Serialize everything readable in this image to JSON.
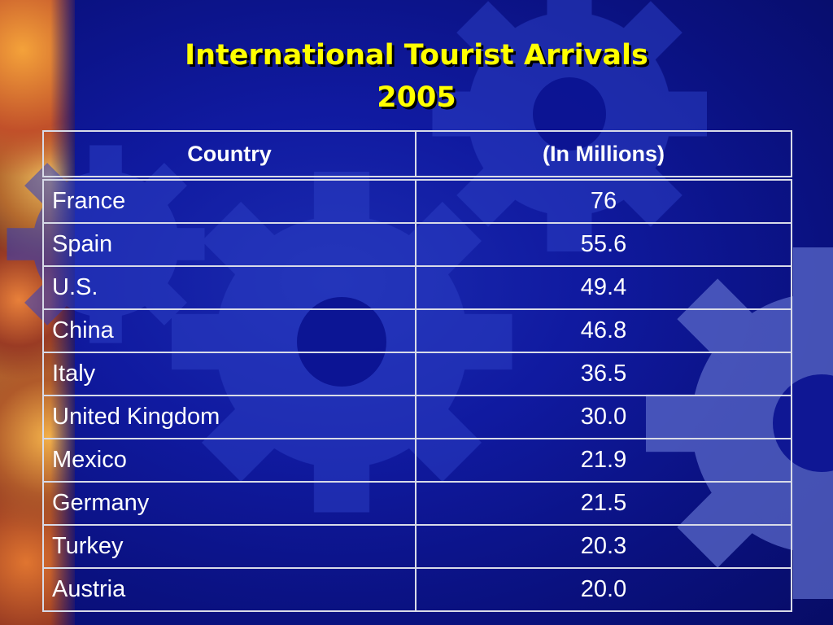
{
  "slide": {
    "title_line1": "International Tourist Arrivals",
    "title_line2": "2005"
  },
  "table": {
    "headers": [
      "Country",
      "(In Millions)"
    ],
    "rows": [
      {
        "country": "France",
        "value": "76"
      },
      {
        "country": "Spain",
        "value": "55.6"
      },
      {
        "country": "U.S.",
        "value": "49.4"
      },
      {
        "country": "China",
        "value": "46.8"
      },
      {
        "country": "Italy",
        "value": "36.5"
      },
      {
        "country": "United Kingdom",
        "value": "30.0"
      },
      {
        "country": "Mexico",
        "value": "21.9"
      },
      {
        "country": "Germany",
        "value": "21.5"
      },
      {
        "country": "Turkey",
        "value": "20.3"
      },
      {
        "country": "Austria",
        "value": "20.0"
      }
    ]
  },
  "colors": {
    "background": "#0a0f7a",
    "title": "#ffff00",
    "table_text": "#ffffff",
    "table_border": "#d8dbe8"
  }
}
